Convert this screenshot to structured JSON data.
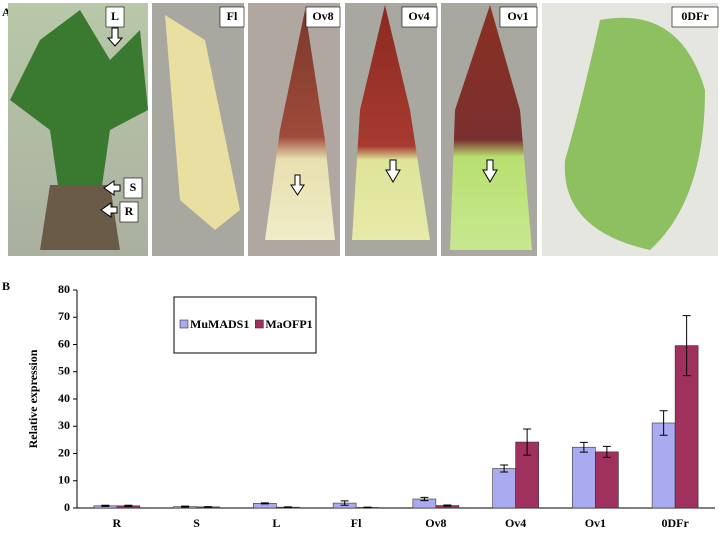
{
  "panel_a": {
    "label": "A",
    "photo_labels": [
      "Fl",
      "Ov8",
      "Ov4",
      "Ov1",
      "0DFr"
    ],
    "arrow_labels": [
      "L",
      "S",
      "R"
    ]
  },
  "panel_b_label": "B",
  "chart_data": {
    "type": "bar",
    "y_label": "Relative expression",
    "categories": [
      "R",
      "S",
      "L",
      "Fl",
      "Ov8",
      "Ov4",
      "Ov1",
      "0DFr"
    ],
    "series": [
      {
        "name": "MuMADS1",
        "color": "#aaaaf0",
        "values": [
          0.8,
          0.5,
          1.7,
          1.8,
          3.3,
          14.5,
          22.3,
          31.2
        ],
        "errors": [
          0.2,
          0.2,
          0.2,
          0.8,
          0.6,
          1.3,
          1.8,
          4.5
        ]
      },
      {
        "name": "MaOFP1",
        "color": "#a0305e",
        "values": [
          0.8,
          0.4,
          0.3,
          0.2,
          0.9,
          24.2,
          20.6,
          59.6
        ],
        "errors": [
          0.2,
          0.1,
          0.1,
          0.1,
          0.2,
          4.8,
          2,
          11
        ]
      }
    ],
    "ylim": [
      0,
      80
    ],
    "yticks": [
      0,
      10,
      20,
      30,
      40,
      50,
      60,
      70,
      80
    ],
    "grid": false,
    "legend": "upper-left"
  }
}
